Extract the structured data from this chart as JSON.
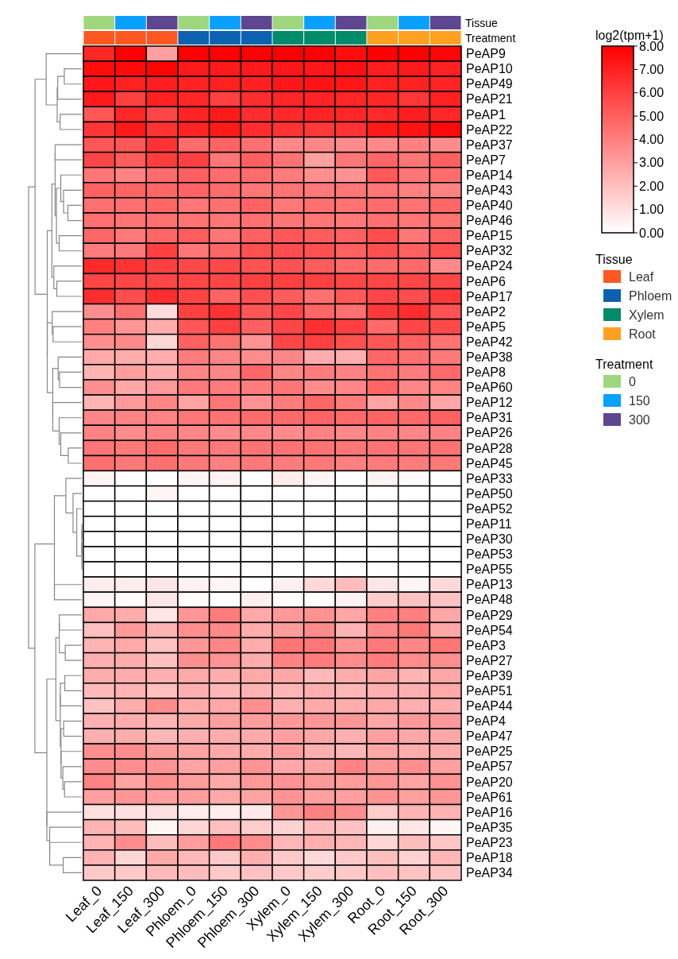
{
  "chart_data": [
    {
      "type": "heatmap",
      "clabel": "log2(tpm+1)",
      "colors": [
        "#ffffff",
        "#ff0000"
      ],
      "clim": [
        0,
        8
      ],
      "cticks": [
        {
          "value": 0,
          "label": "0.00"
        },
        {
          "value": 1,
          "label": "1.00"
        },
        {
          "value": 2,
          "label": "2.00"
        },
        {
          "value": 3,
          "label": "3.00"
        },
        {
          "value": 4,
          "label": "4.00"
        },
        {
          "value": 5,
          "label": "5.00"
        },
        {
          "value": 6,
          "label": "6.00"
        },
        {
          "value": 7,
          "label": "7.00"
        },
        {
          "value": 8,
          "label": "8.00"
        }
      ],
      "categories": [
        "Leaf_0",
        "Leaf_150",
        "Leaf_300",
        "Phloem_0",
        "Phloem_150",
        "Phloem_300",
        "Xylem_0",
        "Xylem_150",
        "Xylem_300",
        "Root_0",
        "Root_150",
        "Root_300"
      ],
      "y_categories": [
        "PeAP9",
        "PeAP10",
        "PeAP49",
        "PeAP21",
        "PeAP1",
        "PeAP22",
        "PeAP37",
        "PeAP7",
        "PeAP14",
        "PeAP43",
        "PeAP40",
        "PeAP46",
        "PeAP15",
        "PeAP32",
        "PeAP24",
        "PeAP6",
        "PeAP17",
        "PeAP2",
        "PeAP5",
        "PeAP42",
        "PeAP38",
        "PeAP8",
        "PeAP60",
        "PeAP12",
        "PeAP31",
        "PeAP26",
        "PeAP28",
        "PeAP45",
        "PeAP33",
        "PeAP50",
        "PeAP52",
        "PeAP11",
        "PeAP30",
        "PeAP53",
        "PeAP55",
        "PeAP13",
        "PeAP48",
        "PeAP29",
        "PeAP54",
        "PeAP3",
        "PeAP27",
        "PeAP39",
        "PeAP51",
        "PeAP44",
        "PeAP4",
        "PeAP47",
        "PeAP25",
        "PeAP57",
        "PeAP20",
        "PeAP61",
        "PeAP16",
        "PeAP35",
        "PeAP23",
        "PeAP18",
        "PeAP34"
      ],
      "cells": [
        [
          6.8,
          8,
          3.0,
          8,
          8,
          8,
          8,
          8,
          7.6,
          8,
          8,
          7.8
        ],
        [
          7.6,
          7.7,
          7.9,
          7.2,
          7.2,
          7.2,
          7.3,
          7.3,
          7.5,
          7.1,
          7.2,
          7.0
        ],
        [
          7.3,
          7.0,
          7.1,
          7.0,
          7.0,
          7.0,
          7.3,
          7.4,
          7.3,
          7.0,
          7.0,
          6.9
        ],
        [
          7.2,
          6.0,
          7.0,
          6.8,
          6.0,
          6.6,
          6.8,
          6.9,
          6.8,
          6.8,
          6.3,
          7.0
        ],
        [
          5.3,
          6.8,
          5.8,
          6.9,
          7.2,
          6.6,
          6.7,
          6.9,
          6.8,
          6.7,
          7.1,
          6.8
        ],
        [
          6.3,
          7.2,
          6.4,
          6.9,
          7.2,
          6.6,
          6.4,
          6.2,
          6.4,
          7.2,
          7.4,
          7.7
        ],
        [
          5.3,
          5.3,
          6.4,
          4.6,
          4.9,
          4.5,
          3.7,
          3.8,
          3.6,
          3.7,
          4.0,
          3.6
        ],
        [
          5.8,
          5.1,
          6.1,
          6.0,
          4.3,
          5.0,
          4.4,
          3.0,
          4.3,
          4.8,
          4.3,
          5.0
        ],
        [
          4.3,
          3.9,
          4.6,
          5.0,
          4.6,
          4.6,
          4.1,
          3.5,
          3.4,
          5.2,
          4.3,
          4.6
        ],
        [
          5.0,
          4.9,
          4.8,
          4.9,
          4.6,
          4.3,
          4.4,
          4.2,
          4.3,
          4.3,
          4.0,
          3.9
        ],
        [
          4.5,
          4.5,
          4.8,
          4.3,
          4.5,
          4.9,
          4.2,
          4.5,
          4.4,
          4.6,
          4.4,
          4.8
        ],
        [
          4.5,
          4.4,
          4.5,
          4.4,
          4.3,
          4.5,
          4.3,
          4.3,
          4.2,
          4.5,
          4.3,
          4.4
        ],
        [
          4.8,
          4.2,
          4.8,
          5.1,
          4.3,
          5.0,
          5.3,
          5.1,
          5.0,
          5.6,
          4.3,
          5.0
        ],
        [
          4.1,
          4.2,
          6.0,
          4.3,
          4.8,
          5.5,
          5.6,
          5.5,
          5.0,
          5.5,
          5.0,
          5.5
        ],
        [
          6.7,
          6.4,
          6.0,
          5.7,
          5.7,
          5.4,
          5.4,
          5.1,
          4.7,
          4.6,
          4.7,
          3.7
        ],
        [
          5.8,
          5.8,
          5.8,
          5.8,
          5.8,
          6.0,
          6.0,
          6.0,
          5.8,
          5.8,
          5.8,
          5.8
        ],
        [
          6.6,
          5.6,
          6.6,
          5.9,
          4.9,
          5.5,
          5.1,
          4.5,
          5.2,
          5.8,
          5.6,
          6.2
        ],
        [
          3.5,
          4.5,
          1.1,
          6.0,
          6.4,
          5.3,
          5.8,
          4.8,
          4.5,
          6.2,
          6.6,
          5.4
        ],
        [
          4.0,
          3.3,
          2.6,
          5.3,
          6.0,
          5.0,
          5.8,
          6.5,
          6.0,
          4.7,
          5.8,
          5.7
        ],
        [
          3.5,
          3.7,
          1.3,
          5.0,
          4.4,
          3.4,
          5.8,
          6.0,
          5.5,
          5.3,
          5.0,
          4.4
        ],
        [
          2.7,
          2.6,
          2.6,
          4.1,
          3.8,
          3.6,
          3.8,
          2.6,
          2.5,
          4.8,
          4.5,
          4.2
        ],
        [
          2.4,
          3.1,
          2.6,
          3.8,
          3.8,
          4.8,
          3.8,
          4.1,
          3.9,
          4.4,
          4.1,
          4.7
        ],
        [
          3.5,
          2.8,
          3.2,
          4.2,
          4.1,
          4.1,
          4.3,
          3.6,
          3.8,
          4.8,
          3.8,
          3.9
        ],
        [
          2.4,
          3.2,
          3.8,
          2.9,
          4.3,
          3.4,
          4.1,
          4.8,
          4.1,
          2.9,
          3.7,
          2.8
        ],
        [
          3.8,
          3.9,
          3.9,
          4.3,
          4.4,
          4.6,
          4.7,
          4.9,
          4.7,
          4.9,
          4.7,
          5.0
        ],
        [
          3.9,
          3.6,
          3.9,
          3.8,
          3.6,
          3.7,
          3.6,
          3.9,
          3.7,
          3.9,
          3.8,
          3.9
        ],
        [
          4.3,
          4.2,
          4.6,
          4.2,
          4.2,
          4.4,
          4.4,
          4.4,
          4.3,
          4.4,
          4.3,
          4.4
        ],
        [
          4.5,
          4.2,
          4.5,
          4.2,
          4.0,
          4.2,
          4.1,
          4.2,
          4.0,
          4.1,
          4.1,
          4.2
        ],
        [
          0.3,
          0,
          0,
          0.3,
          0.4,
          0,
          0.6,
          0.3,
          0,
          0.4,
          0.2,
          0
        ],
        [
          0,
          0,
          0.3,
          0,
          0,
          0,
          0,
          0,
          0,
          0,
          0,
          0
        ],
        [
          0,
          0,
          0,
          0,
          0,
          0.1,
          0,
          0,
          0,
          0,
          0,
          0
        ],
        [
          0,
          0,
          0,
          0,
          0,
          0,
          0,
          0,
          0,
          0,
          0,
          0
        ],
        [
          0,
          0,
          0,
          0,
          0,
          0,
          0,
          0,
          0,
          0,
          0,
          0
        ],
        [
          0,
          0,
          0,
          0,
          0,
          0,
          0,
          0,
          0,
          0,
          0,
          0
        ],
        [
          0,
          0,
          0,
          0,
          0,
          0,
          0,
          0,
          0,
          0,
          0,
          0
        ],
        [
          0.6,
          0.6,
          0.8,
          0.4,
          0.3,
          0,
          0.5,
          1.2,
          2.1,
          0.8,
          0.3,
          1.2
        ],
        [
          0.3,
          0.1,
          0.8,
          0.1,
          0,
          0.5,
          0.1,
          0.1,
          0.4,
          1.6,
          1.9,
          1.9
        ],
        [
          2.7,
          2.6,
          0.8,
          3.3,
          4.1,
          2.7,
          3.2,
          3.4,
          2.8,
          4.0,
          4.0,
          2.8
        ],
        [
          2.0,
          3.2,
          2.4,
          3.5,
          3.7,
          2.6,
          3.1,
          3.6,
          2.4,
          3.7,
          4.2,
          2.8
        ],
        [
          2.4,
          2.7,
          1.9,
          3.3,
          3.8,
          2.6,
          4.3,
          4.3,
          3.4,
          4.2,
          3.8,
          4.3
        ],
        [
          2.5,
          2.6,
          2.0,
          3.5,
          3.4,
          2.6,
          3.9,
          4.1,
          3.6,
          4.1,
          3.6,
          3.5
        ],
        [
          2.6,
          2.6,
          2.5,
          2.7,
          2.6,
          2.7,
          2.8,
          2.2,
          2.6,
          2.9,
          2.4,
          2.8
        ],
        [
          2.2,
          2.4,
          2.0,
          2.5,
          2.3,
          2.4,
          2.3,
          2.5,
          2.3,
          2.5,
          2.5,
          2.7
        ],
        [
          1.9,
          2.6,
          3.6,
          2.7,
          2.8,
          3.5,
          2.5,
          2.7,
          2.6,
          2.8,
          2.5,
          2.6
        ],
        [
          2.5,
          2.6,
          2.4,
          2.7,
          3.0,
          3.1,
          3.2,
          3.3,
          3.3,
          2.8,
          3.2,
          3.2
        ],
        [
          2.5,
          2.6,
          2.3,
          2.5,
          2.6,
          2.7,
          3.0,
          2.8,
          2.5,
          3.0,
          2.8,
          2.8
        ],
        [
          3.5,
          3.6,
          3.1,
          2.9,
          2.7,
          2.6,
          3.0,
          2.5,
          2.3,
          2.8,
          2.6,
          2.6
        ],
        [
          3.6,
          3.5,
          3.4,
          2.9,
          3.0,
          3.4,
          2.8,
          2.9,
          3.9,
          3.3,
          3.5,
          3.0
        ],
        [
          3.9,
          2.9,
          3.5,
          3.1,
          2.7,
          3.2,
          3.4,
          3.2,
          3.1,
          3.3,
          2.9,
          3.4
        ],
        [
          3.0,
          3.3,
          3.0,
          3.1,
          2.7,
          2.9,
          3.4,
          3.0,
          3.0,
          3.4,
          3.0,
          3.3
        ],
        [
          1.0,
          1.0,
          1.0,
          0.6,
          0.6,
          0.7,
          3.3,
          4.0,
          3.5,
          1.6,
          2.4,
          2.4
        ],
        [
          2.4,
          2.1,
          0.3,
          1.3,
          2.0,
          1.6,
          1.4,
          2.1,
          1.9,
          0.5,
          0.8,
          0.3
        ],
        [
          2.4,
          3.6,
          2.1,
          3.1,
          4.2,
          3.6,
          2.3,
          2.5,
          2.3,
          1.3,
          2.1,
          1.8
        ],
        [
          2.4,
          1.3,
          2.7,
          2.2,
          1.7,
          2.5,
          1.7,
          1.2,
          1.7,
          2.0,
          1.4,
          2.3
        ],
        [
          1.7,
          1.7,
          2.2,
          2.1,
          1.7,
          1.9,
          1.7,
          1.6,
          1.7,
          2.0,
          1.9,
          1.9
        ]
      ]
    },
    {
      "type": "other",
      "title": "Tissue",
      "series": [
        {
          "name": "Leaf",
          "color": "#ff5722"
        },
        {
          "name": "Phloem",
          "color": "#0d62b0"
        },
        {
          "name": "Xylem",
          "color": "#008b6a"
        },
        {
          "name": "Root",
          "color": "#ffa020"
        }
      ]
    },
    {
      "type": "other",
      "title": "Treatment",
      "series": [
        {
          "name": "0",
          "color": "#9ed77e"
        },
        {
          "name": "150",
          "color": "#0aa0ff"
        },
        {
          "name": "300",
          "color": "#5e4690"
        }
      ]
    }
  ]
}
